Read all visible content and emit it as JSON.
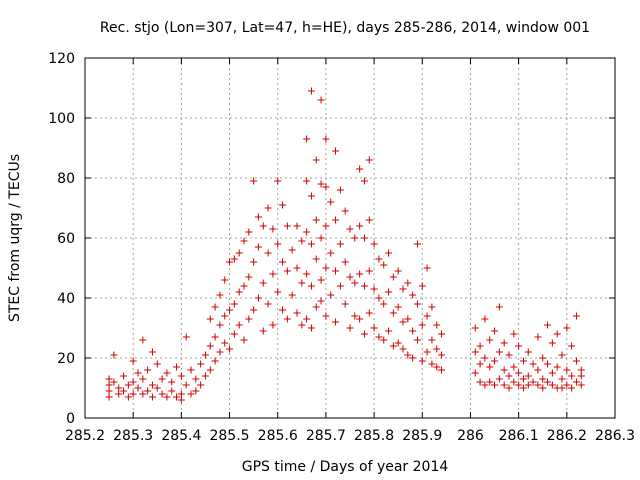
{
  "chart_data": {
    "type": "scatter",
    "title": "Rec. stjo (Lon=307, Lat=47, h=HE), days 285-286, 2014, window 001",
    "xlabel": "GPS time / Days of year 2014",
    "ylabel": "STEC from uqrg / TECUs",
    "xlim": [
      285.2,
      286.3
    ],
    "ylim": [
      0,
      120
    ],
    "xticks": [
      "285.2",
      "285.3",
      "285.4",
      "285.5",
      "285.6",
      "285.7",
      "285.8",
      "285.9",
      "286",
      "286.1",
      "286.2",
      "286.3"
    ],
    "yticks": [
      "0",
      "20",
      "40",
      "60",
      "80",
      "100",
      "120"
    ],
    "grid": true,
    "marker": "+",
    "color": "#d00000",
    "series": [
      {
        "points": [
          [
            285.25,
            13
          ],
          [
            285.25,
            11
          ],
          [
            285.25,
            9
          ],
          [
            285.25,
            7
          ],
          [
            285.26,
            21
          ],
          [
            285.26,
            12
          ],
          [
            285.27,
            10
          ],
          [
            285.27,
            8
          ],
          [
            285.28,
            14
          ],
          [
            285.28,
            9
          ],
          [
            285.29,
            11
          ],
          [
            285.29,
            7
          ],
          [
            285.3,
            19
          ],
          [
            285.3,
            12
          ],
          [
            285.3,
            8
          ],
          [
            285.31,
            15
          ],
          [
            285.31,
            10
          ],
          [
            285.32,
            26
          ],
          [
            285.32,
            13
          ],
          [
            285.32,
            8
          ],
          [
            285.33,
            16
          ],
          [
            285.33,
            9
          ],
          [
            285.34,
            22
          ],
          [
            285.34,
            11
          ],
          [
            285.34,
            7
          ],
          [
            285.35,
            18
          ],
          [
            285.35,
            10
          ],
          [
            285.36,
            13
          ],
          [
            285.36,
            8
          ],
          [
            285.37,
            15
          ],
          [
            285.37,
            7
          ],
          [
            285.38,
            12
          ],
          [
            285.38,
            9
          ],
          [
            285.39,
            17
          ],
          [
            285.39,
            7
          ],
          [
            285.4,
            14
          ],
          [
            285.4,
            8
          ],
          [
            285.4,
            6
          ],
          [
            285.41,
            27
          ],
          [
            285.41,
            11
          ],
          [
            285.42,
            16
          ],
          [
            285.42,
            8
          ],
          [
            285.43,
            13
          ],
          [
            285.43,
            9
          ],
          [
            285.44,
            18
          ],
          [
            285.44,
            11
          ],
          [
            285.45,
            21
          ],
          [
            285.45,
            14
          ],
          [
            285.46,
            33
          ],
          [
            285.46,
            24
          ],
          [
            285.46,
            16
          ],
          [
            285.47,
            37
          ],
          [
            285.47,
            27
          ],
          [
            285.47,
            19
          ],
          [
            285.48,
            41
          ],
          [
            285.48,
            31
          ],
          [
            285.48,
            22
          ],
          [
            285.49,
            46
          ],
          [
            285.49,
            34
          ],
          [
            285.49,
            25
          ],
          [
            285.5,
            52
          ],
          [
            285.5,
            36
          ],
          [
            285.5,
            23
          ],
          [
            285.51,
            53
          ],
          [
            285.51,
            38
          ],
          [
            285.51,
            28
          ],
          [
            285.52,
            55
          ],
          [
            285.52,
            42
          ],
          [
            285.52,
            31
          ],
          [
            285.53,
            59
          ],
          [
            285.53,
            44
          ],
          [
            285.53,
            26
          ],
          [
            285.54,
            62
          ],
          [
            285.54,
            47
          ],
          [
            285.54,
            33
          ],
          [
            285.55,
            79
          ],
          [
            285.55,
            52
          ],
          [
            285.55,
            36
          ],
          [
            285.56,
            67
          ],
          [
            285.56,
            57
          ],
          [
            285.56,
            40
          ],
          [
            285.57,
            64
          ],
          [
            285.57,
            45
          ],
          [
            285.57,
            29
          ],
          [
            285.58,
            70
          ],
          [
            285.58,
            55
          ],
          [
            285.58,
            38
          ],
          [
            285.59,
            63
          ],
          [
            285.59,
            48
          ],
          [
            285.59,
            31
          ],
          [
            285.6,
            79
          ],
          [
            285.6,
            58
          ],
          [
            285.6,
            42
          ],
          [
            285.61,
            71
          ],
          [
            285.61,
            52
          ],
          [
            285.61,
            36
          ],
          [
            285.62,
            64
          ],
          [
            285.62,
            49
          ],
          [
            285.62,
            33
          ],
          [
            285.63,
            56
          ],
          [
            285.63,
            41
          ],
          [
            285.64,
            64
          ],
          [
            285.64,
            50
          ],
          [
            285.64,
            35
          ],
          [
            285.65,
            59
          ],
          [
            285.65,
            45
          ],
          [
            285.65,
            31
          ],
          [
            285.66,
            93
          ],
          [
            285.66,
            79
          ],
          [
            285.66,
            62
          ],
          [
            285.66,
            48
          ],
          [
            285.66,
            33
          ],
          [
            285.67,
            109
          ],
          [
            285.67,
            74
          ],
          [
            285.67,
            58
          ],
          [
            285.67,
            44
          ],
          [
            285.67,
            30
          ],
          [
            285.68,
            86
          ],
          [
            285.68,
            66
          ],
          [
            285.68,
            53
          ],
          [
            285.68,
            37
          ],
          [
            285.69,
            106
          ],
          [
            285.69,
            78
          ],
          [
            285.69,
            60
          ],
          [
            285.69,
            46
          ],
          [
            285.69,
            39
          ],
          [
            285.7,
            93
          ],
          [
            285.7,
            77
          ],
          [
            285.7,
            64
          ],
          [
            285.7,
            50
          ],
          [
            285.7,
            34
          ],
          [
            285.71,
            72
          ],
          [
            285.71,
            55
          ],
          [
            285.71,
            41
          ],
          [
            285.72,
            89
          ],
          [
            285.72,
            66
          ],
          [
            285.72,
            49
          ],
          [
            285.72,
            32
          ],
          [
            285.73,
            76
          ],
          [
            285.73,
            58
          ],
          [
            285.73,
            44
          ],
          [
            285.74,
            69
          ],
          [
            285.74,
            52
          ],
          [
            285.74,
            38
          ],
          [
            285.75,
            63
          ],
          [
            285.75,
            47
          ],
          [
            285.75,
            30
          ],
          [
            285.76,
            60
          ],
          [
            285.76,
            45
          ],
          [
            285.76,
            34
          ],
          [
            285.77,
            83
          ],
          [
            285.77,
            64
          ],
          [
            285.77,
            48
          ],
          [
            285.77,
            33
          ],
          [
            285.78,
            79
          ],
          [
            285.78,
            60
          ],
          [
            285.78,
            44
          ],
          [
            285.78,
            28
          ],
          [
            285.79,
            86
          ],
          [
            285.79,
            66
          ],
          [
            285.79,
            49
          ],
          [
            285.79,
            35
          ],
          [
            285.8,
            58
          ],
          [
            285.8,
            43
          ],
          [
            285.8,
            30
          ],
          [
            285.81,
            53
          ],
          [
            285.81,
            40
          ],
          [
            285.81,
            27
          ],
          [
            285.82,
            51
          ],
          [
            285.82,
            38
          ],
          [
            285.82,
            26
          ],
          [
            285.83,
            55
          ],
          [
            285.83,
            42
          ],
          [
            285.83,
            29
          ],
          [
            285.84,
            47
          ],
          [
            285.84,
            35
          ],
          [
            285.84,
            24
          ],
          [
            285.85,
            49
          ],
          [
            285.85,
            37
          ],
          [
            285.85,
            25
          ],
          [
            285.86,
            43
          ],
          [
            285.86,
            32
          ],
          [
            285.86,
            23
          ],
          [
            285.87,
            45
          ],
          [
            285.87,
            33
          ],
          [
            285.87,
            21
          ],
          [
            285.88,
            41
          ],
          [
            285.88,
            29
          ],
          [
            285.88,
            20
          ],
          [
            285.89,
            58
          ],
          [
            285.89,
            38
          ],
          [
            285.89,
            26
          ],
          [
            285.9,
            44
          ],
          [
            285.9,
            31
          ],
          [
            285.9,
            19
          ],
          [
            285.91,
            50
          ],
          [
            285.91,
            34
          ],
          [
            285.91,
            22
          ],
          [
            285.92,
            37
          ],
          [
            285.92,
            26
          ],
          [
            285.92,
            18
          ],
          [
            285.93,
            31
          ],
          [
            285.93,
            23
          ],
          [
            285.93,
            17
          ],
          [
            285.94,
            28
          ],
          [
            285.94,
            21
          ],
          [
            285.94,
            16
          ],
          [
            286.01,
            30
          ],
          [
            286.01,
            22
          ],
          [
            286.01,
            15
          ],
          [
            286.02,
            24
          ],
          [
            286.02,
            18
          ],
          [
            286.02,
            12
          ],
          [
            286.03,
            33
          ],
          [
            286.03,
            20
          ],
          [
            286.03,
            11
          ],
          [
            286.04,
            26
          ],
          [
            286.04,
            17
          ],
          [
            286.04,
            12
          ],
          [
            286.05,
            29
          ],
          [
            286.05,
            19
          ],
          [
            286.05,
            11
          ],
          [
            286.06,
            37
          ],
          [
            286.06,
            22
          ],
          [
            286.06,
            13
          ],
          [
            286.07,
            25
          ],
          [
            286.07,
            16
          ],
          [
            286.07,
            11
          ],
          [
            286.08,
            21
          ],
          [
            286.08,
            14
          ],
          [
            286.08,
            10
          ],
          [
            286.09,
            28
          ],
          [
            286.09,
            17
          ],
          [
            286.09,
            12
          ],
          [
            286.1,
            24
          ],
          [
            286.1,
            15
          ],
          [
            286.1,
            11
          ],
          [
            286.11,
            19
          ],
          [
            286.11,
            13
          ],
          [
            286.11,
            10
          ],
          [
            286.12,
            22
          ],
          [
            286.12,
            14
          ],
          [
            286.12,
            11
          ],
          [
            286.13,
            18
          ],
          [
            286.13,
            12
          ],
          [
            286.14,
            27
          ],
          [
            286.14,
            16
          ],
          [
            286.14,
            11
          ],
          [
            286.15,
            20
          ],
          [
            286.15,
            13
          ],
          [
            286.15,
            10
          ],
          [
            286.16,
            31
          ],
          [
            286.16,
            18
          ],
          [
            286.16,
            12
          ],
          [
            286.17,
            25
          ],
          [
            286.17,
            15
          ],
          [
            286.17,
            11
          ],
          [
            286.18,
            28
          ],
          [
            286.18,
            17
          ],
          [
            286.18,
            10
          ],
          [
            286.19,
            21
          ],
          [
            286.19,
            13
          ],
          [
            286.19,
            10
          ],
          [
            286.2,
            30
          ],
          [
            286.2,
            16
          ],
          [
            286.2,
            11
          ],
          [
            286.21,
            24
          ],
          [
            286.21,
            14
          ],
          [
            286.21,
            10
          ],
          [
            286.22,
            34
          ],
          [
            286.22,
            19
          ],
          [
            286.22,
            12
          ],
          [
            286.23,
            16
          ],
          [
            286.23,
            14
          ],
          [
            286.23,
            11
          ]
        ]
      }
    ]
  }
}
